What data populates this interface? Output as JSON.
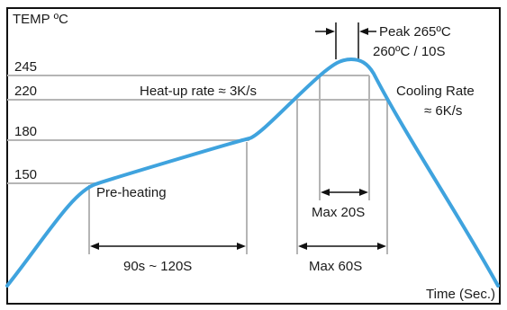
{
  "axis": {
    "y_title": "TEMP ºC",
    "x_title": "Time (Sec.)"
  },
  "temperature_levels": [
    "245",
    "220",
    "180",
    "150"
  ],
  "annotations": {
    "heat_up_rate": "Heat-up rate ≈ 3K/s",
    "pre_heating": "Pre-heating",
    "peak_line1": "Peak 265ºC",
    "peak_line2": "260ºC / 10S",
    "cooling_line1": "Cooling Rate",
    "cooling_line2": "≈ 6K/s",
    "preheat_duration": "90s ~ 120S",
    "max_20": "Max 20S",
    "max_60": "Max 60S"
  },
  "colors": {
    "curve": "#3fa3de",
    "guide": "#b5b5b5",
    "frame": "#111111",
    "text": "#1a1a1a"
  }
}
